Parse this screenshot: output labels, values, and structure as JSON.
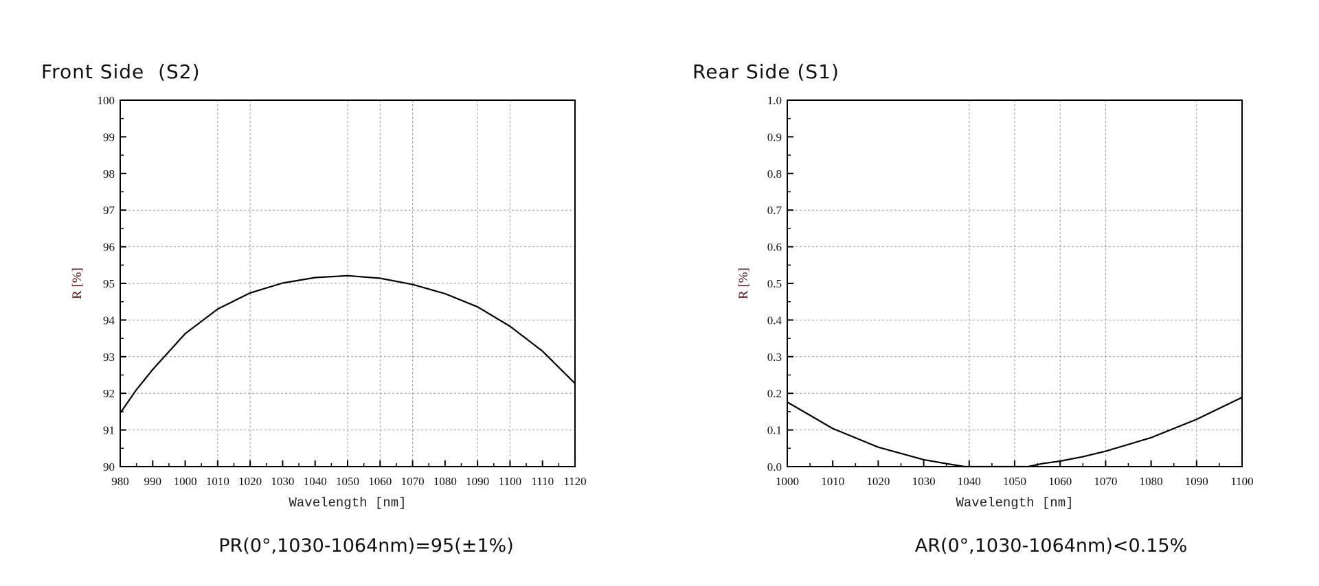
{
  "chart_data": [
    {
      "type": "line",
      "title": "Front Side  (S2)",
      "caption": "PR(0°,1030-1064nm)=95(±1%)",
      "xlabel": "Wavelength [nm]",
      "ylabel": "R [%]",
      "xlim": [
        980,
        1120
      ],
      "ylim": [
        90,
        100
      ],
      "xticks": [
        980,
        990,
        1000,
        1010,
        1020,
        1030,
        1040,
        1050,
        1060,
        1070,
        1080,
        1090,
        1100,
        1110,
        1120
      ],
      "yticks": [
        90,
        91,
        92,
        93,
        94,
        95,
        96,
        97,
        98,
        99,
        100
      ],
      "grid": true,
      "grid_x": [
        1010,
        1020,
        1050,
        1060,
        1070,
        1090,
        1100
      ],
      "grid_y": [
        91,
        92,
        93,
        94,
        95,
        96,
        97
      ],
      "x": [
        980,
        985,
        990,
        1000,
        1010,
        1020,
        1030,
        1040,
        1050,
        1060,
        1070,
        1080,
        1090,
        1100,
        1110,
        1120
      ],
      "y": [
        91.46,
        92.1,
        92.65,
        93.63,
        94.3,
        94.74,
        95.01,
        95.16,
        95.21,
        95.14,
        94.97,
        94.72,
        94.36,
        93.83,
        93.15,
        92.27
      ]
    },
    {
      "type": "line",
      "title": "Rear Side (S1)",
      "caption": "AR(0°,1030-1064nm)<0.15%",
      "xlabel": "Wavelength [nm]",
      "ylabel": "R [%]",
      "xlim": [
        1000,
        1100
      ],
      "ylim": [
        0,
        1.0
      ],
      "xticks": [
        1000,
        1010,
        1020,
        1030,
        1040,
        1050,
        1060,
        1070,
        1080,
        1090,
        1100
      ],
      "yticks": [
        "0.0",
        "0.1",
        "0.2",
        "0.3",
        "0.4",
        "0.5",
        "0.6",
        "0.7",
        "0.8",
        "0.9",
        "1.0"
      ],
      "grid": true,
      "grid_x": [
        1040,
        1050,
        1060,
        1070,
        1090
      ],
      "grid_y": [
        0.1,
        0.2,
        0.3,
        0.4,
        0.6,
        0.7
      ],
      "x": [
        1000,
        1010,
        1020,
        1030,
        1035,
        1039,
        1045,
        1053,
        1056,
        1060,
        1065,
        1070,
        1080,
        1090,
        1100
      ],
      "y": [
        0.176,
        0.104,
        0.053,
        0.019,
        0.008,
        0.0,
        0.0,
        0.0,
        0.008,
        0.015,
        0.027,
        0.042,
        0.079,
        0.129,
        0.189
      ]
    }
  ],
  "colors": {
    "line": "#000000",
    "grid": "#999999",
    "ylabel": "#5a1010"
  }
}
